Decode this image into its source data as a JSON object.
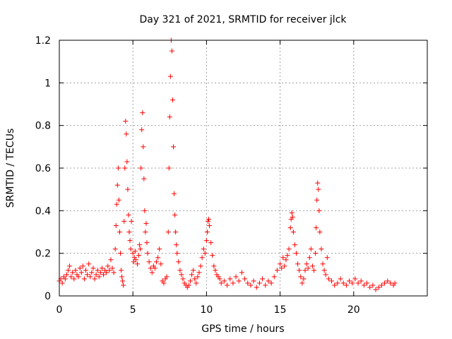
{
  "chart_data": {
    "type": "scatter",
    "title": "Day 321 of 2021, SRMTID for receiver jlck",
    "xlabel": "GPS time / hours",
    "ylabel": "SRMTID / TECUs",
    "xlim": [
      0,
      25
    ],
    "ylim": [
      0,
      1.2
    ],
    "x_ticks": [
      0,
      5,
      10,
      15,
      20
    ],
    "x_tick_labels": [
      "0",
      "5",
      "10",
      "15",
      "20"
    ],
    "y_ticks": [
      0,
      0.2,
      0.4,
      0.6,
      0.8,
      1.0,
      1.2
    ],
    "y_tick_labels": [
      "0",
      "0.2",
      "0.4",
      "0.6",
      "0.8",
      "1",
      "1.2"
    ],
    "grid": true,
    "marker": "+",
    "color": "#ff0000",
    "series": [
      {
        "name": "SRMTID",
        "points": [
          [
            0.0,
            0.07
          ],
          [
            0.1,
            0.08
          ],
          [
            0.2,
            0.06
          ],
          [
            0.3,
            0.09
          ],
          [
            0.4,
            0.08
          ],
          [
            0.5,
            0.1
          ],
          [
            0.6,
            0.12
          ],
          [
            0.7,
            0.14
          ],
          [
            0.8,
            0.09
          ],
          [
            0.9,
            0.11
          ],
          [
            1.0,
            0.08
          ],
          [
            1.1,
            0.12
          ],
          [
            1.2,
            0.1
          ],
          [
            1.3,
            0.09
          ],
          [
            1.4,
            0.13
          ],
          [
            1.5,
            0.11
          ],
          [
            1.6,
            0.14
          ],
          [
            1.7,
            0.08
          ],
          [
            1.8,
            0.12
          ],
          [
            1.9,
            0.1
          ],
          [
            2.0,
            0.15
          ],
          [
            2.1,
            0.09
          ],
          [
            2.2,
            0.11
          ],
          [
            2.3,
            0.13
          ],
          [
            2.4,
            0.08
          ],
          [
            2.5,
            0.1
          ],
          [
            2.6,
            0.12
          ],
          [
            2.7,
            0.09
          ],
          [
            2.8,
            0.11
          ],
          [
            2.9,
            0.13
          ],
          [
            3.0,
            0.1
          ],
          [
            3.1,
            0.12
          ],
          [
            3.2,
            0.11
          ],
          [
            3.3,
            0.14
          ],
          [
            3.4,
            0.12
          ],
          [
            3.5,
            0.17
          ],
          [
            3.6,
            0.13
          ],
          [
            3.7,
            0.11
          ],
          [
            3.8,
            0.22
          ],
          [
            3.85,
            0.33
          ],
          [
            3.9,
            0.43
          ],
          [
            3.95,
            0.52
          ],
          [
            4.0,
            0.6
          ],
          [
            4.05,
            0.45
          ],
          [
            4.1,
            0.3
          ],
          [
            4.15,
            0.2
          ],
          [
            4.2,
            0.12
          ],
          [
            4.25,
            0.09
          ],
          [
            4.3,
            0.07
          ],
          [
            4.35,
            0.05
          ],
          [
            4.4,
            0.35
          ],
          [
            4.45,
            0.6
          ],
          [
            4.5,
            0.82
          ],
          [
            4.55,
            0.76
          ],
          [
            4.6,
            0.63
          ],
          [
            4.65,
            0.5
          ],
          [
            4.7,
            0.38
          ],
          [
            4.75,
            0.3
          ],
          [
            4.8,
            0.26
          ],
          [
            4.85,
            0.22
          ],
          [
            4.9,
            0.35
          ],
          [
            5.0,
            0.2
          ],
          [
            5.05,
            0.16
          ],
          [
            5.1,
            0.18
          ],
          [
            5.15,
            0.21
          ],
          [
            5.2,
            0.17
          ],
          [
            5.3,
            0.15
          ],
          [
            5.4,
            0.19
          ],
          [
            5.45,
            0.24
          ],
          [
            5.5,
            0.22
          ],
          [
            5.55,
            0.6
          ],
          [
            5.6,
            0.78
          ],
          [
            5.65,
            0.86
          ],
          [
            5.7,
            0.7
          ],
          [
            5.75,
            0.55
          ],
          [
            5.8,
            0.4
          ],
          [
            5.85,
            0.3
          ],
          [
            5.9,
            0.34
          ],
          [
            5.95,
            0.25
          ],
          [
            6.0,
            0.2
          ],
          [
            6.1,
            0.16
          ],
          [
            6.2,
            0.13
          ],
          [
            6.3,
            0.11
          ],
          [
            6.4,
            0.14
          ],
          [
            6.5,
            0.13
          ],
          [
            6.6,
            0.16
          ],
          [
            6.7,
            0.18
          ],
          [
            6.8,
            0.22
          ],
          [
            6.9,
            0.15
          ],
          [
            7.0,
            0.07
          ],
          [
            7.1,
            0.06
          ],
          [
            7.2,
            0.08
          ],
          [
            7.3,
            0.09
          ],
          [
            7.4,
            0.3
          ],
          [
            7.45,
            0.6
          ],
          [
            7.5,
            0.84
          ],
          [
            7.55,
            1.03
          ],
          [
            7.6,
            1.2
          ],
          [
            7.65,
            1.15
          ],
          [
            7.7,
            0.92
          ],
          [
            7.75,
            0.7
          ],
          [
            7.8,
            0.48
          ],
          [
            7.85,
            0.38
          ],
          [
            7.9,
            0.3
          ],
          [
            7.95,
            0.24
          ],
          [
            8.0,
            0.2
          ],
          [
            8.1,
            0.16
          ],
          [
            8.2,
            0.12
          ],
          [
            8.3,
            0.1
          ],
          [
            8.4,
            0.08
          ],
          [
            8.5,
            0.06
          ],
          [
            8.6,
            0.05
          ],
          [
            8.7,
            0.04
          ],
          [
            8.8,
            0.05
          ],
          [
            8.9,
            0.07
          ],
          [
            9.0,
            0.1
          ],
          [
            9.1,
            0.12
          ],
          [
            9.2,
            0.08
          ],
          [
            9.3,
            0.06
          ],
          [
            9.4,
            0.09
          ],
          [
            9.5,
            0.11
          ],
          [
            9.6,
            0.14
          ],
          [
            9.7,
            0.18
          ],
          [
            9.8,
            0.22
          ],
          [
            9.9,
            0.2
          ],
          [
            10.0,
            0.26
          ],
          [
            10.05,
            0.3
          ],
          [
            10.1,
            0.35
          ],
          [
            10.15,
            0.36
          ],
          [
            10.2,
            0.33
          ],
          [
            10.3,
            0.25
          ],
          [
            10.4,
            0.19
          ],
          [
            10.5,
            0.14
          ],
          [
            10.6,
            0.12
          ],
          [
            10.7,
            0.1
          ],
          [
            10.8,
            0.09
          ],
          [
            10.9,
            0.08
          ],
          [
            11.0,
            0.06
          ],
          [
            11.2,
            0.07
          ],
          [
            11.4,
            0.05
          ],
          [
            11.6,
            0.08
          ],
          [
            11.8,
            0.06
          ],
          [
            12.0,
            0.09
          ],
          [
            12.2,
            0.07
          ],
          [
            12.4,
            0.11
          ],
          [
            12.6,
            0.08
          ],
          [
            12.8,
            0.06
          ],
          [
            13.0,
            0.05
          ],
          [
            13.2,
            0.07
          ],
          [
            13.4,
            0.04
          ],
          [
            13.6,
            0.06
          ],
          [
            13.8,
            0.08
          ],
          [
            14.0,
            0.05
          ],
          [
            14.2,
            0.07
          ],
          [
            14.4,
            0.06
          ],
          [
            14.6,
            0.09
          ],
          [
            14.8,
            0.12
          ],
          [
            15.0,
            0.15
          ],
          [
            15.1,
            0.13
          ],
          [
            15.2,
            0.18
          ],
          [
            15.3,
            0.14
          ],
          [
            15.4,
            0.17
          ],
          [
            15.5,
            0.19
          ],
          [
            15.6,
            0.22
          ],
          [
            15.7,
            0.32
          ],
          [
            15.75,
            0.36
          ],
          [
            15.8,
            0.39
          ],
          [
            15.85,
            0.37
          ],
          [
            15.9,
            0.3
          ],
          [
            16.0,
            0.24
          ],
          [
            16.1,
            0.2
          ],
          [
            16.2,
            0.15
          ],
          [
            16.3,
            0.12
          ],
          [
            16.4,
            0.09
          ],
          [
            16.5,
            0.06
          ],
          [
            16.6,
            0.08
          ],
          [
            16.7,
            0.12
          ],
          [
            16.8,
            0.15
          ],
          [
            16.9,
            0.13
          ],
          [
            17.0,
            0.18
          ],
          [
            17.1,
            0.22
          ],
          [
            17.2,
            0.14
          ],
          [
            17.3,
            0.12
          ],
          [
            17.4,
            0.2
          ],
          [
            17.45,
            0.32
          ],
          [
            17.5,
            0.45
          ],
          [
            17.55,
            0.53
          ],
          [
            17.6,
            0.5
          ],
          [
            17.65,
            0.4
          ],
          [
            17.7,
            0.3
          ],
          [
            17.8,
            0.22
          ],
          [
            17.9,
            0.15
          ],
          [
            18.0,
            0.12
          ],
          [
            18.1,
            0.1
          ],
          [
            18.2,
            0.18
          ],
          [
            18.3,
            0.08
          ],
          [
            18.5,
            0.07
          ],
          [
            18.7,
            0.05
          ],
          [
            18.9,
            0.06
          ],
          [
            19.1,
            0.08
          ],
          [
            19.3,
            0.06
          ],
          [
            19.5,
            0.05
          ],
          [
            19.7,
            0.07
          ],
          [
            19.9,
            0.06
          ],
          [
            20.1,
            0.08
          ],
          [
            20.3,
            0.06
          ],
          [
            20.5,
            0.07
          ],
          [
            20.7,
            0.05
          ],
          [
            20.9,
            0.06
          ],
          [
            21.1,
            0.04
          ],
          [
            21.3,
            0.05
          ],
          [
            21.5,
            0.03
          ],
          [
            21.7,
            0.04
          ],
          [
            21.9,
            0.05
          ],
          [
            22.1,
            0.06
          ],
          [
            22.3,
            0.07
          ],
          [
            22.5,
            0.06
          ],
          [
            22.7,
            0.05
          ],
          [
            22.8,
            0.06
          ]
        ]
      }
    ]
  }
}
